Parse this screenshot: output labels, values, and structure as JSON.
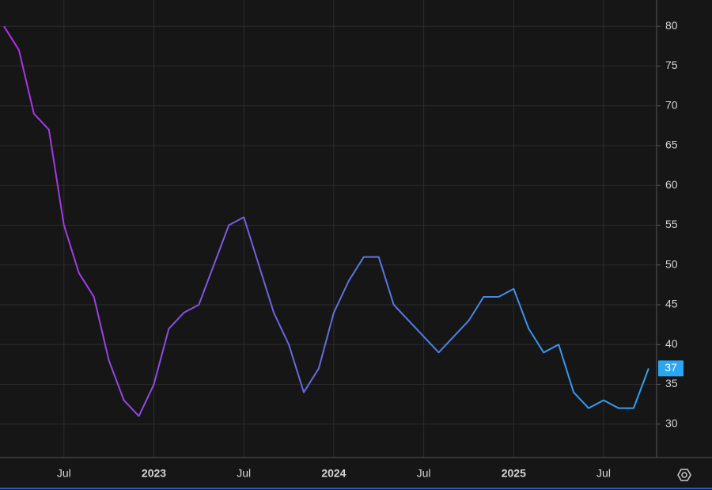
{
  "chart_data": {
    "type": "line",
    "x": [
      "2022-03",
      "2022-04",
      "2022-05",
      "2022-06",
      "2022-07",
      "2022-08",
      "2022-09",
      "2022-10",
      "2022-11",
      "2022-12",
      "2023-01",
      "2023-02",
      "2023-03",
      "2023-04",
      "2023-05",
      "2023-06",
      "2023-07",
      "2023-08",
      "2023-09",
      "2023-10",
      "2023-11",
      "2023-12",
      "2024-01",
      "2024-02",
      "2024-03",
      "2024-04",
      "2024-05",
      "2024-06",
      "2024-07",
      "2024-08",
      "2024-09",
      "2024-10",
      "2024-11",
      "2024-12",
      "2025-01",
      "2025-02",
      "2025-03",
      "2025-04",
      "2025-05",
      "2025-06",
      "2025-07",
      "2025-08",
      "2025-09",
      "2025-10"
    ],
    "values": [
      80,
      77,
      69,
      67,
      55,
      49,
      46,
      38,
      33,
      31,
      35,
      42,
      44,
      45,
      50,
      55,
      56,
      50,
      44,
      40,
      34,
      37,
      44,
      48,
      51,
      51,
      45,
      43,
      41,
      39,
      41,
      43,
      46,
      46,
      47,
      42,
      39,
      40,
      34,
      32,
      33,
      32,
      32,
      37
    ],
    "last_value_label": "37",
    "colors": [
      "#b22ee6",
      "#5f6ee0",
      "#2aa6f2"
    ],
    "ylim": [
      25.8,
      83.3
    ],
    "yticks": [
      30,
      35,
      40,
      45,
      50,
      55,
      60,
      65,
      70,
      75,
      80
    ],
    "xticks": [
      {
        "value": "2022-07",
        "label": "Jul"
      },
      {
        "value": "2023-01",
        "label": "2023"
      },
      {
        "value": "2023-07",
        "label": "Jul"
      },
      {
        "value": "2024-01",
        "label": "2024"
      },
      {
        "value": "2024-07",
        "label": "Jul"
      },
      {
        "value": "2025-01",
        "label": "2025"
      },
      {
        "value": "2025-07",
        "label": "Jul"
      }
    ],
    "grid": true
  }
}
